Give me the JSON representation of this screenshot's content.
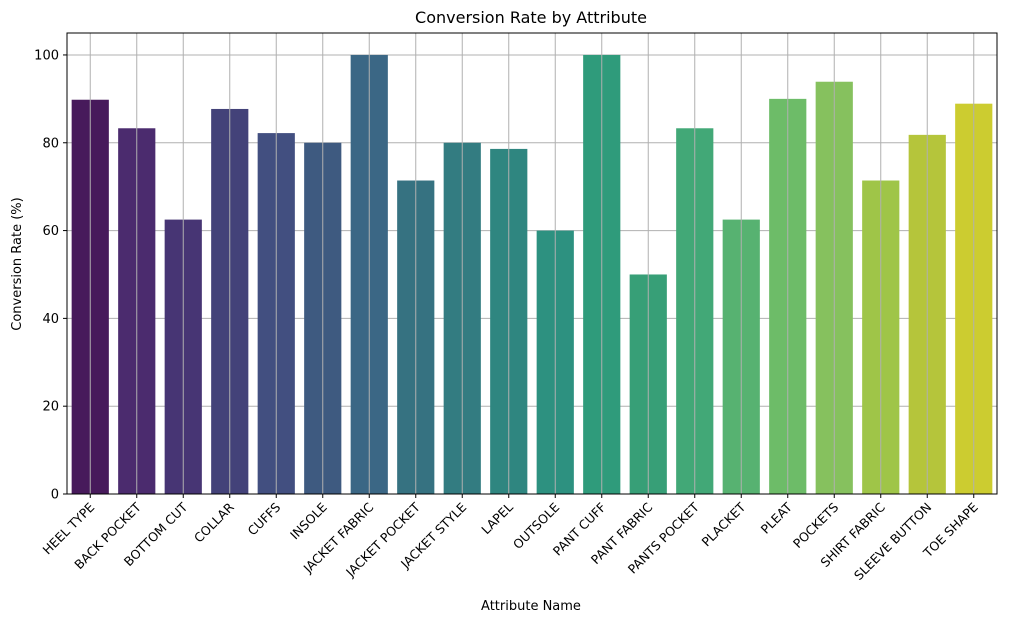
{
  "chart_data": {
    "type": "bar",
    "title": "Conversion Rate by Attribute",
    "xlabel": "Attribute Name",
    "ylabel": "Conversion Rate (%)",
    "ylim": [
      0,
      105
    ],
    "yticks": [
      0,
      20,
      40,
      60,
      80,
      100
    ],
    "grid": true,
    "palette": "viridis",
    "categories": [
      "HEEL TYPE",
      "BACK POCKET",
      "BOTTOM CUT",
      "COLLAR",
      "CUFFS",
      "INSOLE",
      "JACKET FABRIC",
      "JACKET POCKET",
      "JACKET STYLE",
      "LAPEL",
      "OUTSOLE",
      "PANT CUFF",
      "PANT FABRIC",
      "PANTS POCKET",
      "PLACKET",
      "PLEAT",
      "POCKETS",
      "SHIRT FABRIC",
      "SLEEVE BUTTON",
      "TOE SHAPE"
    ],
    "values": [
      89.8,
      83.3,
      62.5,
      87.7,
      82.2,
      80.0,
      100.0,
      71.4,
      80.0,
      78.6,
      60.0,
      100.0,
      50.0,
      83.3,
      62.5,
      90.0,
      93.9,
      71.4,
      81.8,
      88.9
    ],
    "colors": [
      "#471a5b",
      "#4b2b6e",
      "#473574",
      "#434279",
      "#424f80",
      "#3e5a80",
      "#3b6785",
      "#367281",
      "#337c81",
      "#2f8680",
      "#2d9180",
      "#2f9b7b",
      "#379f77",
      "#42a877",
      "#57b271",
      "#6dbc68",
      "#86c15e",
      "#9fc548",
      "#b5c53b",
      "#cccc30"
    ]
  }
}
